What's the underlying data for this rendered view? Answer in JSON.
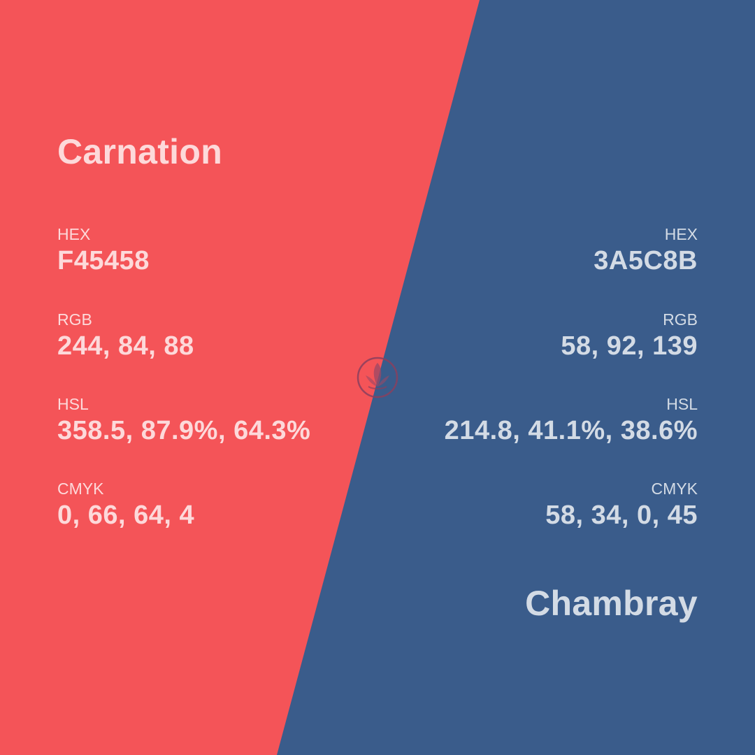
{
  "left": {
    "name": "Carnation",
    "color": "#F45458",
    "hex_label": "HEX",
    "hex": "F45458",
    "rgb_label": "RGB",
    "rgb": "244, 84, 88",
    "hsl_label": "HSL",
    "hsl": "358.5, 87.9%, 64.3%",
    "cmyk_label": "CMYK",
    "cmyk": "0, 66, 64, 4"
  },
  "right": {
    "name": "Chambray",
    "color": "#3A5C8B",
    "hex_label": "HEX",
    "hex": "3A5C8B",
    "rgb_label": "RGB",
    "rgb": "58, 92, 139",
    "hsl_label": "HSL",
    "hsl": "214.8, 41.1%, 38.6%",
    "cmyk_label": "CMYK",
    "cmyk": "58, 34, 0, 45"
  },
  "logo_icon": "leaf-circle-icon"
}
